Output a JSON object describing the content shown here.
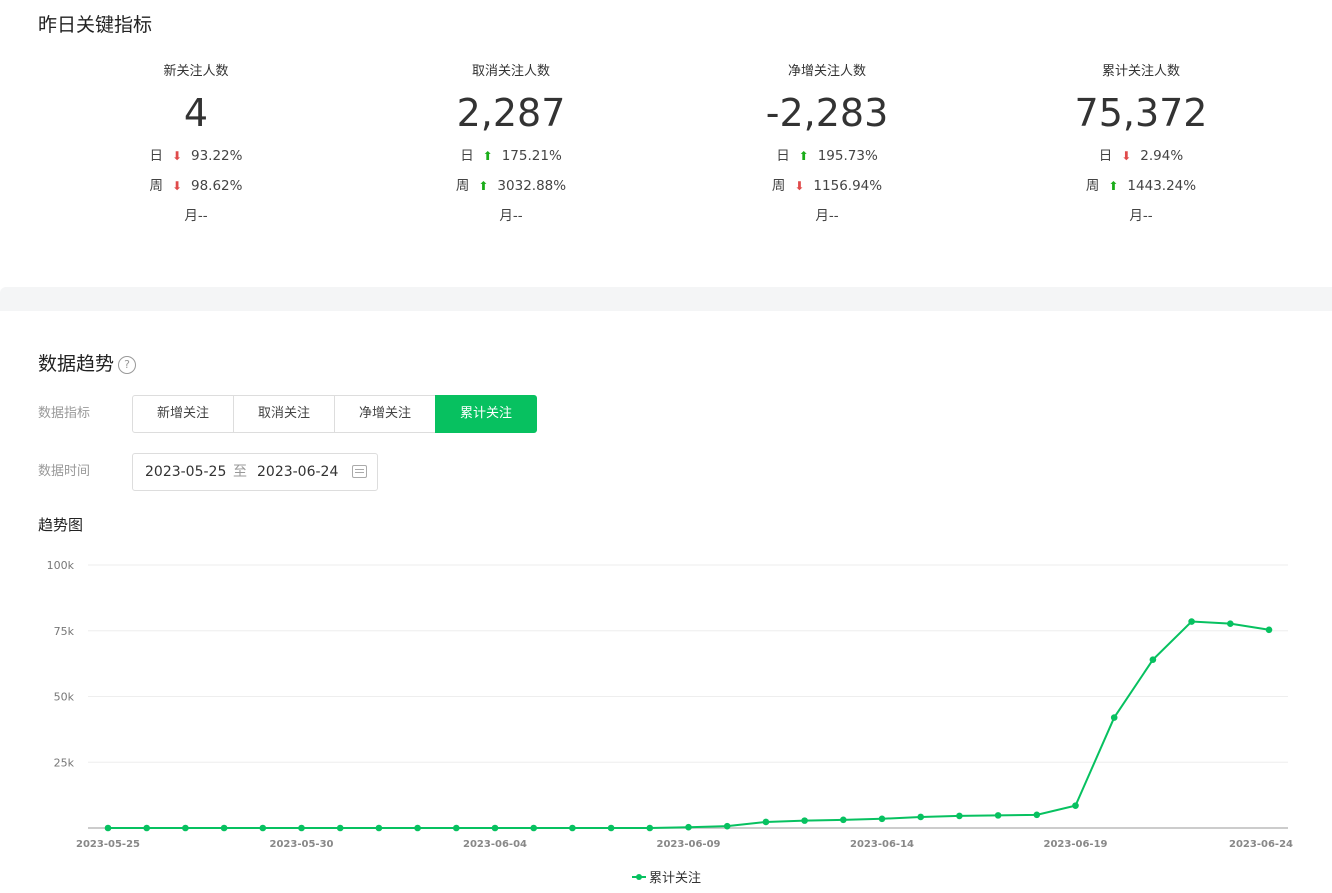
{
  "kpi_title": "昨日关键指标",
  "metrics": [
    {
      "label": "新关注人数",
      "value": "4",
      "day": {
        "k": "日",
        "dir": "down",
        "pct": "93.22%"
      },
      "week": {
        "k": "周",
        "dir": "down",
        "pct": "98.62%"
      },
      "month": "月--"
    },
    {
      "label": "取消关注人数",
      "value": "2,287",
      "day": {
        "k": "日",
        "dir": "up",
        "pct": "175.21%"
      },
      "week": {
        "k": "周",
        "dir": "up",
        "pct": "3032.88%"
      },
      "month": "月--"
    },
    {
      "label": "净增关注人数",
      "value": "-2,283",
      "day": {
        "k": "日",
        "dir": "up",
        "pct": "195.73%"
      },
      "week": {
        "k": "周",
        "dir": "down",
        "pct": "1156.94%"
      },
      "month": "月--"
    },
    {
      "label": "累计关注人数",
      "value": "75,372",
      "day": {
        "k": "日",
        "dir": "down",
        "pct": "2.94%"
      },
      "week": {
        "k": "周",
        "dir": "up",
        "pct": "1443.24%"
      },
      "month": "月--"
    }
  ],
  "trend": {
    "title": "数据趋势",
    "help_icon": "question-circle-icon",
    "metric_label": "数据指标",
    "tabs": [
      "新增关注",
      "取消关注",
      "净增关注",
      "累计关注"
    ],
    "active_tab": "累计关注",
    "time_label": "数据时间",
    "date_start": "2023-05-25",
    "date_sep": "至",
    "date_end": "2023-06-24",
    "calendar_icon": "calendar-icon",
    "chart_title": "趋势图"
  },
  "colors": {
    "accent": "#07c160",
    "up": "#1aad19",
    "down": "#e04b4b"
  },
  "chart_data": {
    "type": "line",
    "x": [
      "2023-05-25",
      "2023-05-26",
      "2023-05-27",
      "2023-05-28",
      "2023-05-29",
      "2023-05-30",
      "2023-05-31",
      "2023-06-01",
      "2023-06-02",
      "2023-06-03",
      "2023-06-04",
      "2023-06-05",
      "2023-06-06",
      "2023-06-07",
      "2023-06-08",
      "2023-06-09",
      "2023-06-10",
      "2023-06-11",
      "2023-06-12",
      "2023-06-13",
      "2023-06-14",
      "2023-06-15",
      "2023-06-16",
      "2023-06-17",
      "2023-06-18",
      "2023-06-19",
      "2023-06-20",
      "2023-06-21",
      "2023-06-22",
      "2023-06-23",
      "2023-06-24"
    ],
    "x_tick_labels": [
      "2023-05-25",
      "2023-05-30",
      "2023-06-04",
      "2023-06-09",
      "2023-06-14",
      "2023-06-19",
      "2023-06-24"
    ],
    "series": [
      {
        "name": "累计关注",
        "color": "#07c160",
        "values": [
          0,
          0,
          0,
          0,
          0,
          0,
          0,
          0,
          0,
          0,
          0,
          0,
          0,
          0,
          0,
          300,
          700,
          2300,
          2800,
          3100,
          3500,
          4200,
          4600,
          4800,
          5000,
          8500,
          42000,
          64000,
          78500,
          77700,
          75372
        ]
      }
    ],
    "yticks": [
      "25k",
      "50k",
      "75k",
      "100k"
    ],
    "ylim": [
      0,
      100000
    ],
    "grid": true,
    "legend": "bottom-center"
  }
}
